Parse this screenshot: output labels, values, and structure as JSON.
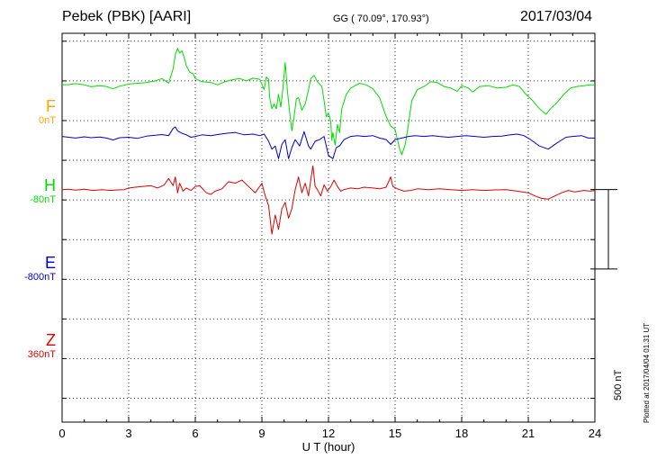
{
  "header": {
    "station": "Pebek (PBK)  [AARI]",
    "coords": "GG ( 70.09°, 170.93°)",
    "date": "2017/03/04"
  },
  "footer": {
    "plotted": "Plotted at 2017/04/04 01:31  UT",
    "scale_label": "500 nT"
  },
  "components": [
    {
      "key": "F",
      "letter": "F",
      "offset": "0nT",
      "color": "#ffa500"
    },
    {
      "key": "H",
      "letter": "H",
      "offset": "-80nT",
      "color": "#00dd00"
    },
    {
      "key": "E",
      "letter": "E",
      "offset": "-800nT",
      "color": "#0000cc"
    },
    {
      "key": "Z",
      "letter": "Z",
      "offset": "360nT",
      "color": "#dd0000"
    }
  ],
  "chart_data": {
    "type": "line",
    "xlabel": "U T (hour)",
    "xlim": [
      0,
      24
    ],
    "xticks": [
      "0",
      "3",
      "6",
      "9",
      "12",
      "15",
      "18",
      "21",
      "24"
    ],
    "ylim": [
      -1400,
      1050
    ],
    "scale_bar_nT": 500,
    "grid": true,
    "series": [
      {
        "name": "H",
        "color": "#00dd00",
        "baseline_nT": 725,
        "points": [
          [
            0,
            0
          ],
          [
            0.3,
            2
          ],
          [
            0.6,
            8
          ],
          [
            1,
            0
          ],
          [
            1.3,
            -12
          ],
          [
            1.7,
            -5
          ],
          [
            2.0,
            -10
          ],
          [
            2.3,
            -25
          ],
          [
            2.6,
            -8
          ],
          [
            3.0,
            5
          ],
          [
            3.4,
            10
          ],
          [
            3.8,
            15
          ],
          [
            4.2,
            25
          ],
          [
            4.5,
            40
          ],
          [
            4.8,
            10
          ],
          [
            5.0,
            100
          ],
          [
            5.1,
            190
          ],
          [
            5.2,
            230
          ],
          [
            5.3,
            200
          ],
          [
            5.4,
            215
          ],
          [
            5.5,
            170
          ],
          [
            5.6,
            120
          ],
          [
            5.75,
            80
          ],
          [
            5.9,
            70
          ],
          [
            6.0,
            40
          ],
          [
            6.3,
            20
          ],
          [
            6.7,
            15
          ],
          [
            7.0,
            0
          ],
          [
            7.3,
            18
          ],
          [
            7.6,
            30
          ],
          [
            8.0,
            40
          ],
          [
            8.3,
            25
          ],
          [
            8.6,
            42
          ],
          [
            8.9,
            35
          ],
          [
            9.1,
            -30
          ],
          [
            9.2,
            50
          ],
          [
            9.3,
            35
          ],
          [
            9.35,
            -80
          ],
          [
            9.45,
            -150
          ],
          [
            9.55,
            -120
          ],
          [
            9.65,
            -150
          ],
          [
            9.75,
            -60
          ],
          [
            9.85,
            -140
          ],
          [
            9.95,
            -20
          ],
          [
            10.05,
            140
          ],
          [
            10.15,
            -40
          ],
          [
            10.25,
            -170
          ],
          [
            10.35,
            -290
          ],
          [
            10.45,
            -200
          ],
          [
            10.55,
            -90
          ],
          [
            10.65,
            -80
          ],
          [
            10.8,
            -160
          ],
          [
            10.95,
            -120
          ],
          [
            11.1,
            -30
          ],
          [
            11.2,
            40
          ],
          [
            11.35,
            60
          ],
          [
            11.5,
            20
          ],
          [
            11.7,
            -10
          ],
          [
            11.8,
            -100
          ],
          [
            11.9,
            -200
          ],
          [
            12.0,
            -180
          ],
          [
            12.1,
            -230
          ],
          [
            12.15,
            -350
          ],
          [
            12.2,
            -300
          ],
          [
            12.3,
            -380
          ],
          [
            12.4,
            -250
          ],
          [
            12.5,
            -300
          ],
          [
            12.6,
            -150
          ],
          [
            12.8,
            -60
          ],
          [
            13.0,
            -20
          ],
          [
            13.2,
            -5
          ],
          [
            13.4,
            10
          ],
          [
            13.7,
            0
          ],
          [
            14.0,
            -25
          ],
          [
            14.3,
            -80
          ],
          [
            14.6,
            -200
          ],
          [
            14.8,
            -260
          ],
          [
            15.0,
            -280
          ],
          [
            15.2,
            -400
          ],
          [
            15.3,
            -440
          ],
          [
            15.45,
            -380
          ],
          [
            15.6,
            -250
          ],
          [
            15.75,
            -100
          ],
          [
            16.0,
            -30
          ],
          [
            16.3,
            -10
          ],
          [
            16.6,
            20
          ],
          [
            16.9,
            15
          ],
          [
            17.2,
            -10
          ],
          [
            17.5,
            -20
          ],
          [
            17.8,
            -40
          ],
          [
            18.0,
            -5
          ],
          [
            18.3,
            -20
          ],
          [
            18.5,
            -45
          ],
          [
            18.8,
            -10
          ],
          [
            19.2,
            -5
          ],
          [
            19.6,
            -20
          ],
          [
            20.0,
            -15
          ],
          [
            20.3,
            0
          ],
          [
            20.6,
            -10
          ],
          [
            20.9,
            -60
          ],
          [
            21.2,
            -100
          ],
          [
            21.5,
            -150
          ],
          [
            21.8,
            -185
          ],
          [
            22.0,
            -150
          ],
          [
            22.3,
            -110
          ],
          [
            22.6,
            -60
          ],
          [
            22.9,
            -20
          ],
          [
            23.2,
            -10
          ],
          [
            23.5,
            -5
          ],
          [
            23.8,
            0
          ],
          [
            24,
            0
          ]
        ]
      },
      {
        "name": "E",
        "color": "#0000cc",
        "baseline_nT": 400,
        "points": [
          [
            0,
            0
          ],
          [
            0.3,
            -5
          ],
          [
            0.6,
            -10
          ],
          [
            1,
            -2
          ],
          [
            1.3,
            -8
          ],
          [
            1.7,
            -4
          ],
          [
            2.0,
            -10
          ],
          [
            2.3,
            -22
          ],
          [
            2.6,
            -8
          ],
          [
            3.0,
            -5
          ],
          [
            3.4,
            -12
          ],
          [
            3.8,
            2
          ],
          [
            4.2,
            8
          ],
          [
            4.5,
            12
          ],
          [
            4.8,
            5
          ],
          [
            5.0,
            50
          ],
          [
            5.1,
            60
          ],
          [
            5.2,
            35
          ],
          [
            5.4,
            20
          ],
          [
            5.6,
            10
          ],
          [
            5.8,
            -5
          ],
          [
            6.0,
            0
          ],
          [
            6.3,
            10
          ],
          [
            6.7,
            5
          ],
          [
            7.0,
            12
          ],
          [
            7.4,
            20
          ],
          [
            7.8,
            25
          ],
          [
            8.2,
            10
          ],
          [
            8.6,
            15
          ],
          [
            8.9,
            5
          ],
          [
            9.1,
            15
          ],
          [
            9.3,
            -30
          ],
          [
            9.45,
            -80
          ],
          [
            9.6,
            -60
          ],
          [
            9.75,
            -140
          ],
          [
            9.9,
            -50
          ],
          [
            10.05,
            -20
          ],
          [
            10.2,
            -140
          ],
          [
            10.35,
            -70
          ],
          [
            10.5,
            -20
          ],
          [
            10.7,
            -60
          ],
          [
            10.9,
            30
          ],
          [
            11.1,
            -60
          ],
          [
            11.2,
            -80
          ],
          [
            11.4,
            -30
          ],
          [
            11.6,
            -20
          ],
          [
            11.8,
            0
          ],
          [
            12.0,
            -120
          ],
          [
            12.2,
            -140
          ],
          [
            12.35,
            -70
          ],
          [
            12.5,
            -60
          ],
          [
            12.7,
            -20
          ],
          [
            13.0,
            0
          ],
          [
            13.3,
            5
          ],
          [
            13.6,
            0
          ],
          [
            14.0,
            5
          ],
          [
            14.3,
            -10
          ],
          [
            14.6,
            -20
          ],
          [
            14.8,
            -50
          ],
          [
            15.0,
            -20
          ],
          [
            15.3,
            -10
          ],
          [
            15.6,
            0
          ],
          [
            15.9,
            5
          ],
          [
            16.3,
            0
          ],
          [
            16.7,
            5
          ],
          [
            17.0,
            0
          ],
          [
            17.4,
            -5
          ],
          [
            17.8,
            0
          ],
          [
            18.2,
            5
          ],
          [
            18.6,
            0
          ],
          [
            19.0,
            -5
          ],
          [
            19.4,
            0
          ],
          [
            19.8,
            2
          ],
          [
            20.2,
            10
          ],
          [
            20.5,
            15
          ],
          [
            20.8,
            5
          ],
          [
            21.1,
            -20
          ],
          [
            21.5,
            -60
          ],
          [
            21.9,
            -80
          ],
          [
            22.3,
            -40
          ],
          [
            22.7,
            -5
          ],
          [
            23.0,
            0
          ],
          [
            23.4,
            5
          ],
          [
            23.7,
            -10
          ],
          [
            24,
            -10
          ]
        ]
      },
      {
        "name": "Z",
        "color": "#dd0000",
        "baseline_nT": 65,
        "points": [
          [
            0,
            0
          ],
          [
            0.3,
            2
          ],
          [
            0.6,
            -3
          ],
          [
            1,
            2
          ],
          [
            1.4,
            -5
          ],
          [
            1.8,
            0
          ],
          [
            2.2,
            -5
          ],
          [
            2.5,
            -2
          ],
          [
            2.8,
            0
          ],
          [
            3.0,
            10
          ],
          [
            3.3,
            15
          ],
          [
            3.6,
            20
          ],
          [
            4.0,
            25
          ],
          [
            4.3,
            10
          ],
          [
            4.6,
            30
          ],
          [
            4.8,
            70
          ],
          [
            5.0,
            25
          ],
          [
            5.1,
            80
          ],
          [
            5.2,
            -20
          ],
          [
            5.3,
            40
          ],
          [
            5.45,
            -10
          ],
          [
            5.6,
            10
          ],
          [
            5.8,
            -5
          ],
          [
            6.0,
            20
          ],
          [
            6.2,
            25
          ],
          [
            6.5,
            -20
          ],
          [
            6.7,
            -30
          ],
          [
            6.9,
            -10
          ],
          [
            7.2,
            5
          ],
          [
            7.5,
            50
          ],
          [
            7.8,
            40
          ],
          [
            8.1,
            60
          ],
          [
            8.4,
            20
          ],
          [
            8.7,
            -20
          ],
          [
            9.0,
            40
          ],
          [
            9.15,
            -40
          ],
          [
            9.3,
            -100
          ],
          [
            9.45,
            -280
          ],
          [
            9.6,
            -160
          ],
          [
            9.75,
            -250
          ],
          [
            9.9,
            -120
          ],
          [
            10.05,
            -80
          ],
          [
            10.2,
            -180
          ],
          [
            10.35,
            -120
          ],
          [
            10.5,
            0
          ],
          [
            10.65,
            80
          ],
          [
            10.8,
            -20
          ],
          [
            10.95,
            40
          ],
          [
            11.1,
            -40
          ],
          [
            11.2,
            60
          ],
          [
            11.3,
            150
          ],
          [
            11.4,
            20
          ],
          [
            11.5,
            0
          ],
          [
            11.65,
            -40
          ],
          [
            11.8,
            30
          ],
          [
            11.95,
            -10
          ],
          [
            12.1,
            20
          ],
          [
            12.25,
            60
          ],
          [
            12.4,
            20
          ],
          [
            12.55,
            -10
          ],
          [
            12.7,
            0
          ],
          [
            13.0,
            10
          ],
          [
            13.3,
            5
          ],
          [
            13.6,
            15
          ],
          [
            14.0,
            10
          ],
          [
            14.3,
            5
          ],
          [
            14.6,
            15
          ],
          [
            14.8,
            80
          ],
          [
            14.9,
            20
          ],
          [
            15.1,
            5
          ],
          [
            15.4,
            -10
          ],
          [
            15.7,
            -5
          ],
          [
            16.0,
            5
          ],
          [
            16.5,
            0
          ],
          [
            17.0,
            5
          ],
          [
            17.5,
            0
          ],
          [
            18.0,
            -5
          ],
          [
            18.5,
            0
          ],
          [
            19.0,
            -5
          ],
          [
            19.5,
            -2
          ],
          [
            20.0,
            0
          ],
          [
            20.5,
            -10
          ],
          [
            21.0,
            -20
          ],
          [
            21.3,
            -40
          ],
          [
            21.6,
            -55
          ],
          [
            21.9,
            -60
          ],
          [
            22.2,
            -40
          ],
          [
            22.5,
            -20
          ],
          [
            22.8,
            -5
          ],
          [
            23.1,
            -15
          ],
          [
            23.5,
            -5
          ],
          [
            23.8,
            -10
          ],
          [
            24,
            -5
          ]
        ]
      }
    ]
  }
}
